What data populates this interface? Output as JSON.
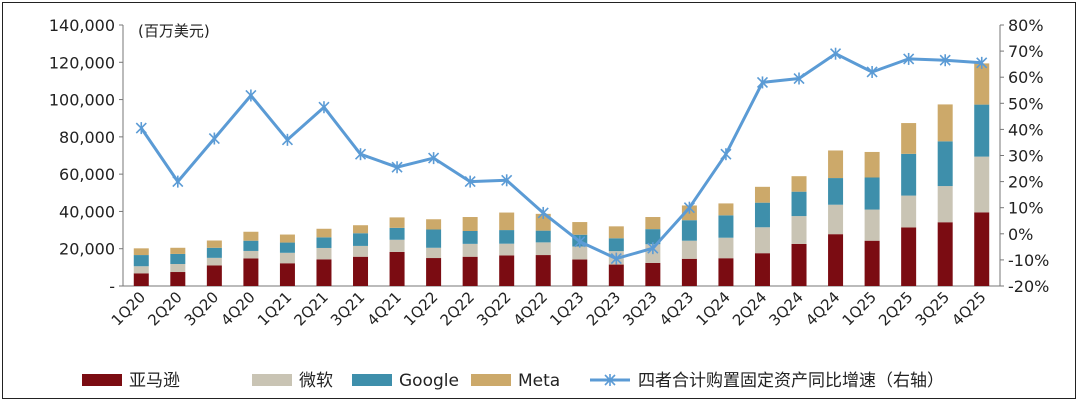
{
  "chart_data": {
    "type": "bar",
    "subtype": "stacked bar + line (dual axis)",
    "unit_label": "(百万美元)",
    "categories": [
      "1Q20",
      "2Q20",
      "3Q20",
      "4Q20",
      "1Q21",
      "2Q21",
      "3Q21",
      "4Q21",
      "1Q22",
      "2Q22",
      "3Q22",
      "4Q22",
      "1Q23",
      "2Q23",
      "3Q23",
      "4Q23",
      "1Q24",
      "2Q24",
      "3Q24",
      "4Q24",
      "1Q25",
      "2Q25",
      "3Q25",
      "4Q25"
    ],
    "left_axis": {
      "ylim": [
        0,
        140000
      ],
      "ticks": [
        {
          "value": 0,
          "label": "-"
        },
        {
          "value": 20000,
          "label": "20,000"
        },
        {
          "value": 40000,
          "label": "40,000"
        },
        {
          "value": 60000,
          "label": "60,000"
        },
        {
          "value": 80000,
          "label": "80,000"
        },
        {
          "value": 100000,
          "label": "100,000"
        },
        {
          "value": 120000,
          "label": "120,000"
        },
        {
          "value": 140000,
          "label": "140,000"
        }
      ]
    },
    "right_axis": {
      "ylim": [
        -20,
        80
      ],
      "ticks": [
        {
          "value": -20,
          "label": "-20%"
        },
        {
          "value": -10,
          "label": "-10%"
        },
        {
          "value": 0,
          "label": "0%"
        },
        {
          "value": 10,
          "label": "10%"
        },
        {
          "value": 20,
          "label": "20%"
        },
        {
          "value": 30,
          "label": "30%"
        },
        {
          "value": 40,
          "label": "40%"
        },
        {
          "value": 50,
          "label": "50%"
        },
        {
          "value": 60,
          "label": "60%"
        },
        {
          "value": 70,
          "label": "70%"
        },
        {
          "value": 80,
          "label": "80%"
        }
      ]
    },
    "series": [
      {
        "name": "亚马逊",
        "color": "#7b0c12",
        "values": [
          6800,
          7500,
          11000,
          14800,
          12200,
          14300,
          15700,
          18300,
          15000,
          15700,
          16400,
          16600,
          14200,
          11500,
          12400,
          14600,
          14900,
          17600,
          22600,
          27800,
          24300,
          31400,
          34200,
          39500
        ]
      },
      {
        "name": "微软",
        "color": "#c9c4b4",
        "values": [
          3800,
          4300,
          4100,
          4000,
          5600,
          6100,
          5800,
          6500,
          5500,
          6900,
          6300,
          6800,
          7000,
          7200,
          10000,
          9700,
          11000,
          13900,
          14900,
          15800,
          16700,
          17100,
          19400,
          29900
        ]
      },
      {
        "name": "Google",
        "color": "#3e8fab",
        "values": [
          6000,
          5400,
          5400,
          5500,
          5500,
          5700,
          6800,
          6400,
          9800,
          6900,
          7300,
          6300,
          6300,
          6900,
          8100,
          11000,
          12000,
          13200,
          13100,
          14300,
          17200,
          22400,
          24000,
          27900
        ]
      },
      {
        "name": "Meta",
        "color": "#cca96a",
        "values": [
          3600,
          3300,
          3900,
          4800,
          4300,
          4600,
          4300,
          5600,
          5500,
          7500,
          9400,
          9000,
          6800,
          6400,
          6500,
          7900,
          6400,
          8500,
          8300,
          14800,
          13700,
          16500,
          19800,
          22100
        ]
      },
      {
        "name": "四者合计购置固定资产同比增速（右轴）",
        "type": "line",
        "axis": "right",
        "color": "#5b9bd5",
        "values": [
          40.5,
          20,
          36.5,
          53,
          36,
          48.5,
          30.5,
          25.5,
          29,
          20,
          20.5,
          8,
          -3,
          -9.5,
          -5.5,
          10,
          30.5,
          58,
          59.5,
          69,
          62,
          67,
          66.5,
          65.5
        ]
      }
    ],
    "legend": {
      "position": "bottom",
      "items": [
        "亚马逊",
        "微软",
        "Google",
        "Meta",
        "四者合计购置固定资产同比增速（右轴）"
      ]
    },
    "grid": false
  }
}
